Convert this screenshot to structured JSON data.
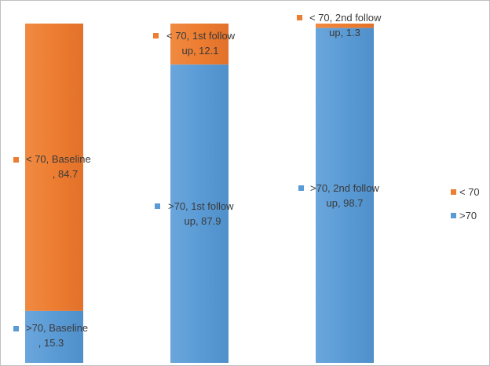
{
  "chart_data": {
    "type": "bar",
    "stacked": true,
    "normalized_percent": true,
    "categories": [
      "Baseline",
      "1st follow up",
      "2nd follow up"
    ],
    "series": [
      {
        "name": ">70",
        "values": [
          15.3,
          87.9,
          98.7
        ],
        "color": "#5b9bd5"
      },
      {
        "name": "< 70",
        "values": [
          84.7,
          12.1,
          1.3
        ],
        "color": "#ed7d31"
      }
    ],
    "data_labels": {
      "gt70": [
        {
          "line1": ">70, Baseline",
          "line2": ", 15.3"
        },
        {
          "line1": ">70, 1st follow",
          "line2": "up, 87.9"
        },
        {
          "line1": ">70, 2nd follow",
          "line2": "up, 98.7"
        }
      ],
      "lt70": [
        {
          "line1": "< 70, Baseline",
          "line2": ", 84.7"
        },
        {
          "line1": "< 70, 1st follow",
          "line2": "up, 12.1"
        },
        {
          "line1": "< 70, 2nd follow",
          "line2": "up, 1.3"
        }
      ]
    },
    "legend": {
      "position": "right",
      "items": [
        "< 70",
        ">70"
      ]
    },
    "ylim": [
      0,
      100
    ],
    "grid": false,
    "axes_visible": false
  }
}
